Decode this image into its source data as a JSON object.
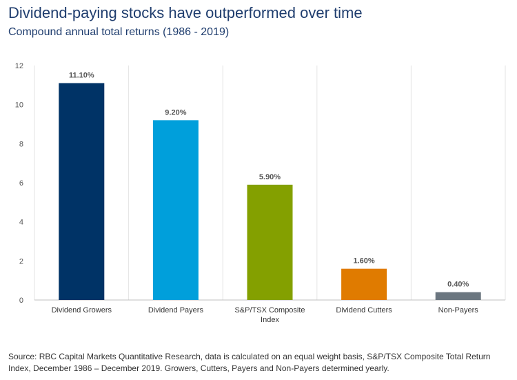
{
  "header": {
    "title": "Dividend-paying stocks have outperformed over time",
    "subtitle": "Compound annual total returns (1986 - 2019)"
  },
  "footer": {
    "source": "Source: RBC Capital Markets Quantitative Research, data is calculated on an equal weight basis, S&P/TSX Composite Total Return Index, December 1986 – December 2019. Growers, Cutters, Payers and Non-Payers determined yearly."
  },
  "chart_data": {
    "type": "bar",
    "title": "Dividend-paying stocks have outperformed over time",
    "subtitle": "Compound annual total returns (1986 - 2019)",
    "categories": [
      [
        "Dividend Growers"
      ],
      [
        "Dividend Payers"
      ],
      [
        "S&P/TSX Composite",
        "Index"
      ],
      [
        "Dividend Cutters"
      ],
      [
        "Non-Payers"
      ]
    ],
    "values": [
      11.1,
      9.2,
      5.9,
      1.6,
      0.4
    ],
    "data_labels": [
      "11.10%",
      "9.20%",
      "5.90%",
      "1.60%",
      "0.40%"
    ],
    "colors": [
      "#003366",
      "#009fdb",
      "#84a000",
      "#e07b00",
      "#6b7680"
    ],
    "yticks": [
      0,
      2,
      4,
      6,
      8,
      10,
      12
    ],
    "ylim": [
      0,
      12
    ],
    "grid": "vertical-separators",
    "legend": "none"
  }
}
